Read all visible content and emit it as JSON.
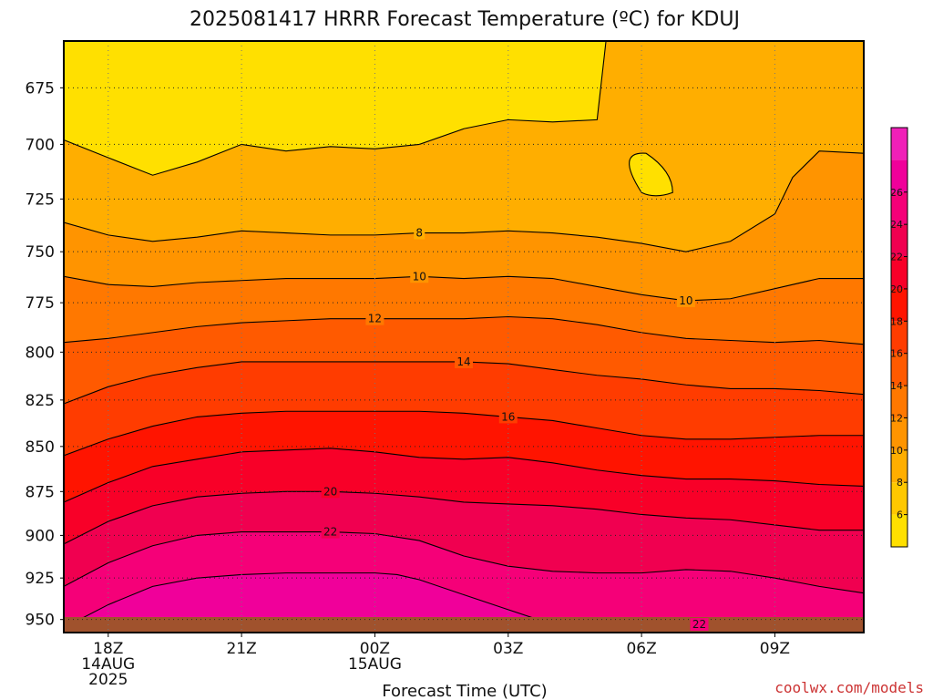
{
  "chart_data": {
    "type": "heatmap",
    "title": "2025081417 HRRR Forecast Temperature (ºC) for KDUJ",
    "xlabel": "Forecast Time (UTC)",
    "ylabel": "",
    "x_ticks": [
      {
        "hour": 1,
        "lines": [
          "18Z",
          "14AUG",
          "2025"
        ]
      },
      {
        "hour": 4,
        "lines": [
          "21Z"
        ]
      },
      {
        "hour": 7,
        "lines": [
          "00Z",
          "15AUG"
        ]
      },
      {
        "hour": 10,
        "lines": [
          "03Z"
        ]
      },
      {
        "hour": 13,
        "lines": [
          "06Z"
        ]
      },
      {
        "hour": 16,
        "lines": [
          "09Z"
        ]
      }
    ],
    "xlim": [
      0,
      18
    ],
    "y_ticks": [
      675,
      700,
      725,
      750,
      775,
      800,
      825,
      850,
      875,
      900,
      925,
      950
    ],
    "ylim": [
      655,
      958
    ],
    "y_scale": "log-pressure",
    "grid": true,
    "colorbar": {
      "placement": "right",
      "levels": [
        4,
        6,
        8,
        10,
        12,
        14,
        16,
        18,
        20,
        22,
        24,
        26,
        28
      ],
      "tick_labels": [
        6,
        8,
        10,
        12,
        14,
        16,
        18,
        20,
        22,
        24,
        26
      ],
      "colors": [
        "#ffe000",
        "#ffc800",
        "#ffae00",
        "#ff9400",
        "#ff7800",
        "#ff5a00",
        "#ff3c00",
        "#ff1400",
        "#f80028",
        "#f00050",
        "#f50078",
        "#f0009a",
        "#f020b8"
      ]
    },
    "ground_color": "#a0522d",
    "contours": [
      {
        "level": 6,
        "x": [
          0,
          1,
          2,
          3,
          4,
          5,
          6,
          7,
          8,
          9,
          10,
          11,
          12,
          12.2
        ],
        "p": [
          698,
          706,
          714,
          708,
          700,
          703,
          701,
          702,
          700,
          693,
          689,
          690,
          689,
          655
        ]
      },
      {
        "level": 8,
        "x": [
          0,
          1,
          2,
          3,
          4,
          5,
          6,
          7,
          8,
          9,
          10,
          11,
          12,
          13,
          14,
          15,
          16,
          16.4,
          17,
          18
        ],
        "p": [
          736,
          742,
          745,
          743,
          740,
          741,
          742,
          742,
          741,
          741,
          740,
          741,
          743,
          746,
          750,
          745,
          732,
          715,
          703,
          704
        ],
        "label_at": 8
      },
      {
        "level": 10,
        "x": [
          0,
          1,
          2,
          3,
          4,
          5,
          6,
          7,
          8,
          9,
          10,
          11,
          12,
          13,
          14,
          15,
          16,
          17,
          18
        ],
        "p": [
          762,
          766,
          767,
          765,
          764,
          763,
          763,
          763,
          762,
          763,
          762,
          763,
          767,
          771,
          774,
          773,
          768,
          763,
          763
        ],
        "label_at": 8,
        "label2_at": 14
      },
      {
        "level": 12,
        "x": [
          0,
          1,
          2,
          3,
          4,
          5,
          6,
          7,
          8,
          9,
          10,
          11,
          12,
          13,
          14,
          15,
          16,
          17,
          18
        ],
        "p": [
          795,
          793,
          790,
          787,
          785,
          784,
          783,
          783,
          783,
          783,
          782,
          783,
          786,
          790,
          793,
          794,
          795,
          794,
          796
        ],
        "label_at": 7
      },
      {
        "level": 14,
        "x": [
          0,
          1,
          2,
          3,
          4,
          5,
          6,
          7,
          8,
          9,
          10,
          11,
          12,
          13,
          14,
          15,
          16,
          17,
          18
        ],
        "p": [
          827,
          818,
          812,
          808,
          805,
          805,
          805,
          805,
          805,
          805,
          806,
          809,
          812,
          814,
          817,
          819,
          819,
          820,
          822
        ],
        "label_at": 9
      },
      {
        "level": 16,
        "x": [
          0,
          1,
          2,
          3,
          4,
          5,
          6,
          7,
          8,
          9,
          10,
          11,
          12,
          13,
          14,
          15,
          16,
          17,
          18
        ],
        "p": [
          855,
          846,
          839,
          834,
          832,
          831,
          831,
          831,
          831,
          832,
          834,
          836,
          840,
          844,
          846,
          846,
          845,
          844,
          844
        ],
        "label_at": 10
      },
      {
        "level": 18,
        "x": [
          0,
          1,
          2,
          3,
          4,
          5,
          6,
          7,
          8,
          9,
          10,
          11,
          12,
          13,
          14,
          15,
          16,
          17,
          18
        ],
        "p": [
          881,
          870,
          861,
          857,
          853,
          852,
          851,
          853,
          856,
          857,
          856,
          859,
          863,
          866,
          868,
          868,
          869,
          871,
          872
        ]
      },
      {
        "level": 20,
        "x": [
          0,
          1,
          2,
          3,
          4,
          5,
          6,
          7,
          8,
          9,
          10,
          11,
          12,
          13,
          14,
          15,
          16,
          17,
          18
        ],
        "p": [
          905,
          892,
          883,
          878,
          876,
          875,
          875,
          876,
          878,
          881,
          882,
          883,
          885,
          888,
          890,
          891,
          894,
          897,
          897
        ],
        "label_at": 6
      },
      {
        "level": 22,
        "x": [
          0,
          1,
          2,
          3,
          4,
          5,
          6,
          7,
          8,
          9,
          10,
          11,
          12,
          13,
          14,
          15,
          16,
          17,
          18
        ],
        "p": [
          930,
          916,
          906,
          900,
          898,
          898,
          898,
          899,
          903,
          912,
          918,
          921,
          922,
          922,
          920,
          921,
          925,
          930,
          934
        ],
        "label_at": 6
      },
      {
        "level": 24,
        "x": [
          0,
          1,
          2,
          3,
          4,
          5,
          6,
          7,
          7.5,
          8,
          9,
          10,
          11,
          12,
          13,
          14,
          15,
          16,
          17,
          18
        ],
        "p": [
          955,
          941,
          930,
          925,
          923,
          922,
          922,
          922,
          923,
          926,
          935,
          944,
          953,
          958,
          958,
          958,
          957,
          956,
          957,
          958
        ]
      }
    ],
    "contour_labels": [
      {
        "level": 8,
        "text": "8"
      },
      {
        "level": 10,
        "text": "10"
      },
      {
        "level": 12,
        "text": "12"
      },
      {
        "level": 14,
        "text": "14"
      },
      {
        "level": 16,
        "text": "16"
      },
      {
        "level": 20,
        "text": "20"
      },
      {
        "level": 22,
        "text": "22"
      }
    ],
    "extra_labels": [
      {
        "text": "22",
        "hour": 14.3,
        "p": 953
      }
    ]
  },
  "credit": "coolwx.com/models"
}
